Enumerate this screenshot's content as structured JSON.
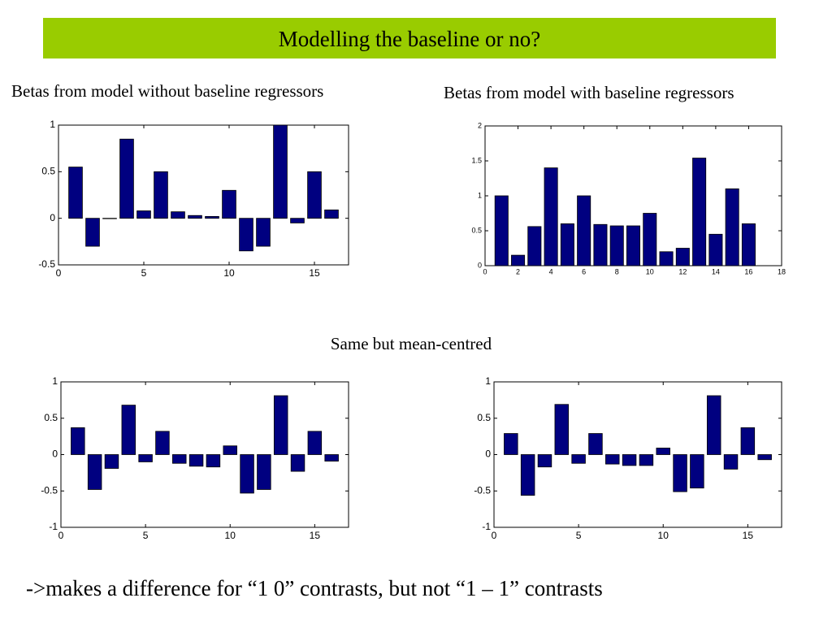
{
  "title": "Modelling the baseline or no?",
  "caption_left": "Betas from model without baseline regressors",
  "caption_right": "Betas from model with baseline regressors",
  "caption_middle": "Same but mean-centred",
  "footer": "->makes a difference for “1 0” contrasts, but not “1 – 1” contrasts",
  "chart_data": [
    {
      "type": "bar",
      "color": "#000080",
      "x": [
        1,
        2,
        3,
        4,
        5,
        6,
        7,
        8,
        9,
        10,
        11,
        12,
        13,
        14,
        15,
        16
      ],
      "values": [
        0.55,
        -0.3,
        0,
        0.85,
        0.08,
        0.5,
        0.07,
        0.03,
        0.02,
        0.3,
        -0.35,
        -0.3,
        1.0,
        -0.05,
        0.5,
        0.09
      ],
      "xlim": [
        0,
        17
      ],
      "xticks": [
        0,
        5,
        10,
        15
      ],
      "ylim": [
        -0.5,
        1
      ],
      "yticks": [
        -0.5,
        0,
        0.5,
        1
      ]
    },
    {
      "type": "bar",
      "color": "#000080",
      "x": [
        1,
        2,
        3,
        4,
        5,
        6,
        7,
        8,
        9,
        10,
        11,
        12,
        13,
        14,
        15,
        16
      ],
      "values": [
        1.0,
        0.15,
        0.56,
        1.4,
        0.6,
        1.0,
        0.59,
        0.57,
        0.57,
        0.75,
        0.2,
        0.25,
        1.54,
        0.45,
        1.1,
        0.6
      ],
      "xlim": [
        0,
        18
      ],
      "xticks": [
        0,
        2,
        4,
        6,
        8,
        10,
        12,
        14,
        16,
        18
      ],
      "ylim": [
        0,
        2
      ],
      "yticks": [
        0,
        0.5,
        1,
        1.5,
        2
      ]
    },
    {
      "type": "bar",
      "color": "#000080",
      "x": [
        1,
        2,
        3,
        4,
        5,
        6,
        7,
        8,
        9,
        10,
        11,
        12,
        13,
        14,
        15,
        16
      ],
      "values": [
        0.37,
        -0.48,
        -0.19,
        0.68,
        -0.1,
        0.32,
        -0.12,
        -0.16,
        -0.17,
        0.12,
        -0.53,
        -0.48,
        0.81,
        -0.23,
        0.32,
        -0.09
      ],
      "xlim": [
        0,
        17
      ],
      "xticks": [
        0,
        5,
        10,
        15
      ],
      "ylim": [
        -1,
        1
      ],
      "yticks": [
        -1,
        -0.5,
        0,
        0.5,
        1
      ]
    },
    {
      "type": "bar",
      "color": "#000080",
      "x": [
        1,
        2,
        3,
        4,
        5,
        6,
        7,
        8,
        9,
        10,
        11,
        12,
        13,
        14,
        15,
        16
      ],
      "values": [
        0.29,
        -0.56,
        -0.17,
        0.69,
        -0.12,
        0.29,
        -0.13,
        -0.15,
        -0.15,
        0.09,
        -0.51,
        -0.46,
        0.81,
        -0.2,
        0.37,
        -0.07
      ],
      "xlim": [
        0,
        17
      ],
      "xticks": [
        0,
        5,
        10,
        15
      ],
      "ylim": [
        -1,
        1
      ],
      "yticks": [
        -1,
        -0.5,
        0,
        0.5,
        1
      ]
    }
  ]
}
